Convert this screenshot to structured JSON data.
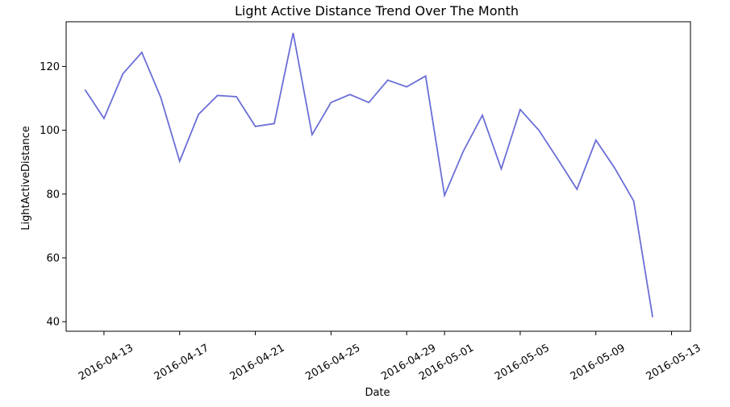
{
  "chart_data": {
    "type": "line",
    "title": "Light Active Distance Trend Over The Month",
    "xlabel": "Date",
    "ylabel": "LightActiveDistance",
    "x_ticks": [
      "2016-04-13",
      "2016-04-17",
      "2016-04-21",
      "2016-04-25",
      "2016-04-29",
      "2016-05-01",
      "2016-05-05",
      "2016-05-09",
      "2016-05-13"
    ],
    "y_ticks": [
      40,
      60,
      80,
      100,
      120
    ],
    "xlim": [
      "2016-04-11",
      "2016-05-14"
    ],
    "ylim": [
      37,
      134
    ],
    "grid": false,
    "line_color": "#6b6fd6",
    "series": [
      {
        "x": [
          "2016-04-12",
          "2016-04-13",
          "2016-04-14",
          "2016-04-15",
          "2016-04-16",
          "2016-04-17",
          "2016-04-18",
          "2016-04-19",
          "2016-04-20",
          "2016-04-21",
          "2016-04-22",
          "2016-04-23",
          "2016-04-24",
          "2016-04-25",
          "2016-04-26",
          "2016-04-27",
          "2016-04-28",
          "2016-04-29",
          "2016-04-30",
          "2016-05-01",
          "2016-05-02",
          "2016-05-03",
          "2016-05-04",
          "2016-05-05",
          "2016-05-06",
          "2016-05-07",
          "2016-05-08",
          "2016-05-09",
          "2016-05-10",
          "2016-05-11",
          "2016-05-12"
        ],
        "values": [
          112.7,
          103.7,
          117.7,
          124.4,
          110.3,
          90.3,
          105.0,
          110.9,
          110.5,
          101.2,
          102.1,
          130.5,
          98.6,
          108.7,
          111.2,
          108.7,
          115.7,
          113.6,
          117.0,
          79.6,
          93.5,
          104.7,
          87.9,
          106.5,
          99.9,
          90.8,
          81.5,
          96.9,
          88.1,
          77.8,
          41.4
        ]
      }
    ]
  }
}
